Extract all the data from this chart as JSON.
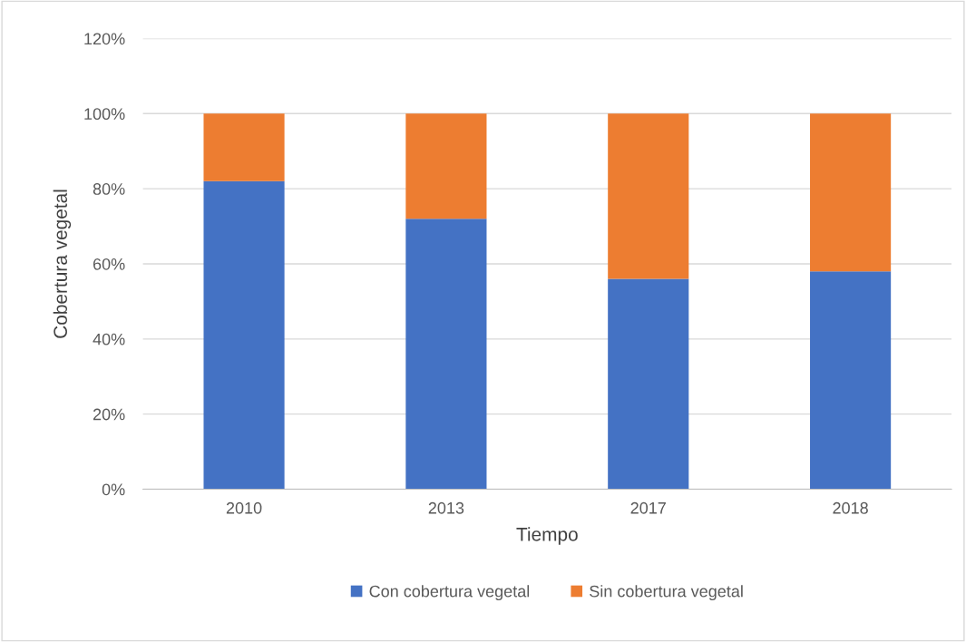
{
  "chart_data": {
    "type": "bar",
    "stacked": true,
    "xlabel": "Tiempo",
    "ylabel": "Cobertura vegetal",
    "categories": [
      "2010",
      "2013",
      "2017",
      "2018"
    ],
    "series": [
      {
        "name": "Con cobertura vegetal",
        "color": "#4472c4",
        "values": [
          82,
          72,
          56,
          58
        ]
      },
      {
        "name": "Sin cobertura vegetal",
        "color": "#ed7d31",
        "values": [
          18,
          28,
          44,
          42
        ]
      }
    ],
    "ylim": [
      0,
      120
    ],
    "yticks": [
      {
        "value": 0,
        "label": "0%"
      },
      {
        "value": 20,
        "label": "20%"
      },
      {
        "value": 40,
        "label": "40%"
      },
      {
        "value": 60,
        "label": "60%"
      },
      {
        "value": 80,
        "label": "80%"
      },
      {
        "value": 100,
        "label": "100%"
      },
      {
        "value": 120,
        "label": "120%"
      }
    ],
    "grid": "y",
    "legend": "bottom"
  }
}
